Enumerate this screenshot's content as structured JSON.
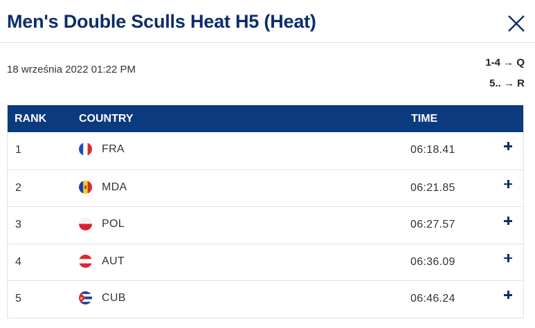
{
  "header": {
    "title": "Men's Double Sculls Heat H5 (Heat)",
    "close_icon": "close-icon"
  },
  "meta": {
    "date": "18 września 2022 01:22 PM",
    "legend": [
      "1-4 → Q",
      "5.. → R"
    ]
  },
  "table": {
    "columns": {
      "rank": "RANK",
      "country": "COUNTRY",
      "time": "TIME"
    },
    "header_color": "#0b3a7e",
    "rows": [
      {
        "rank": "1",
        "flag": "france-flag-icon",
        "country": "FRA",
        "time": "06:18.41"
      },
      {
        "rank": "2",
        "flag": "moldova-flag-icon",
        "country": "MDA",
        "time": "06:21.85"
      },
      {
        "rank": "3",
        "flag": "poland-flag-icon",
        "country": "POL",
        "time": "06:27.57"
      },
      {
        "rank": "4",
        "flag": "austria-flag-icon",
        "country": "AUT",
        "time": "06:36.09"
      },
      {
        "rank": "5",
        "flag": "cuba-flag-icon",
        "country": "CUB",
        "time": "06:46.24"
      }
    ],
    "expand_icon": "plus-icon"
  }
}
